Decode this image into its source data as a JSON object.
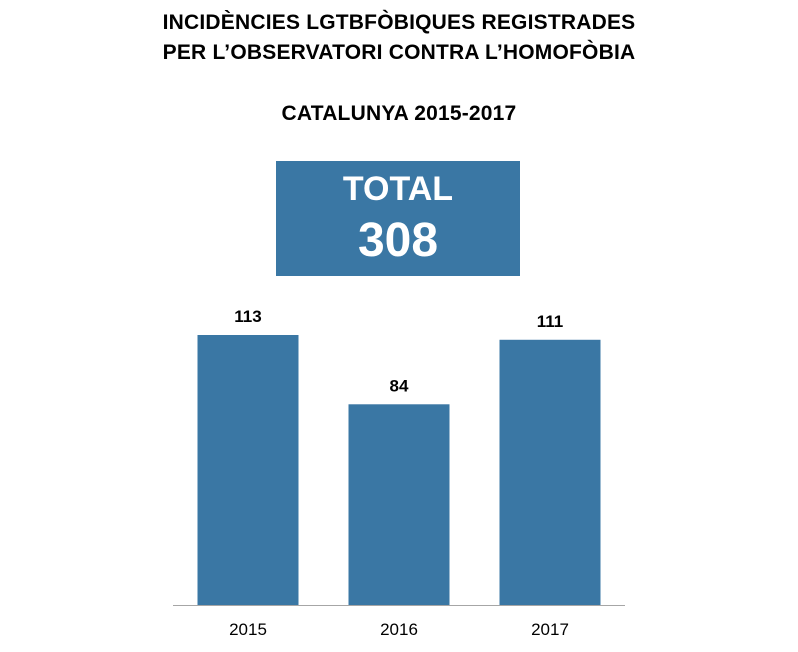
{
  "header": {
    "title_line1": "INCIDÈNCIES LGTBFÒBIQUES REGISTRADES",
    "title_line2": "PER L’OBSERVATORI CONTRA L’HOMOFÒBIA",
    "subtitle": "CATALUNYA 2015-2017"
  },
  "total_box": {
    "label": "TOTAL",
    "value": "308",
    "color": "#3a77a4"
  },
  "chart_data": {
    "type": "bar",
    "title": "INCIDÈNCIES LGTBFÒBIQUES REGISTRADES PER L’OBSERVATORI CONTRA L’HOMOFÒBIA",
    "subtitle": "CATALUNYA 2015-2017",
    "categories": [
      "2015",
      "2016",
      "2017"
    ],
    "values": [
      113,
      84,
      111
    ],
    "data_labels": [
      "113",
      "84",
      "111"
    ],
    "xlabel": "",
    "ylabel": "",
    "ylim": [
      0,
      113
    ],
    "grid": false,
    "legend": "none",
    "bar_color": "#3a77a4",
    "axis_color": "#a6a6a6"
  }
}
